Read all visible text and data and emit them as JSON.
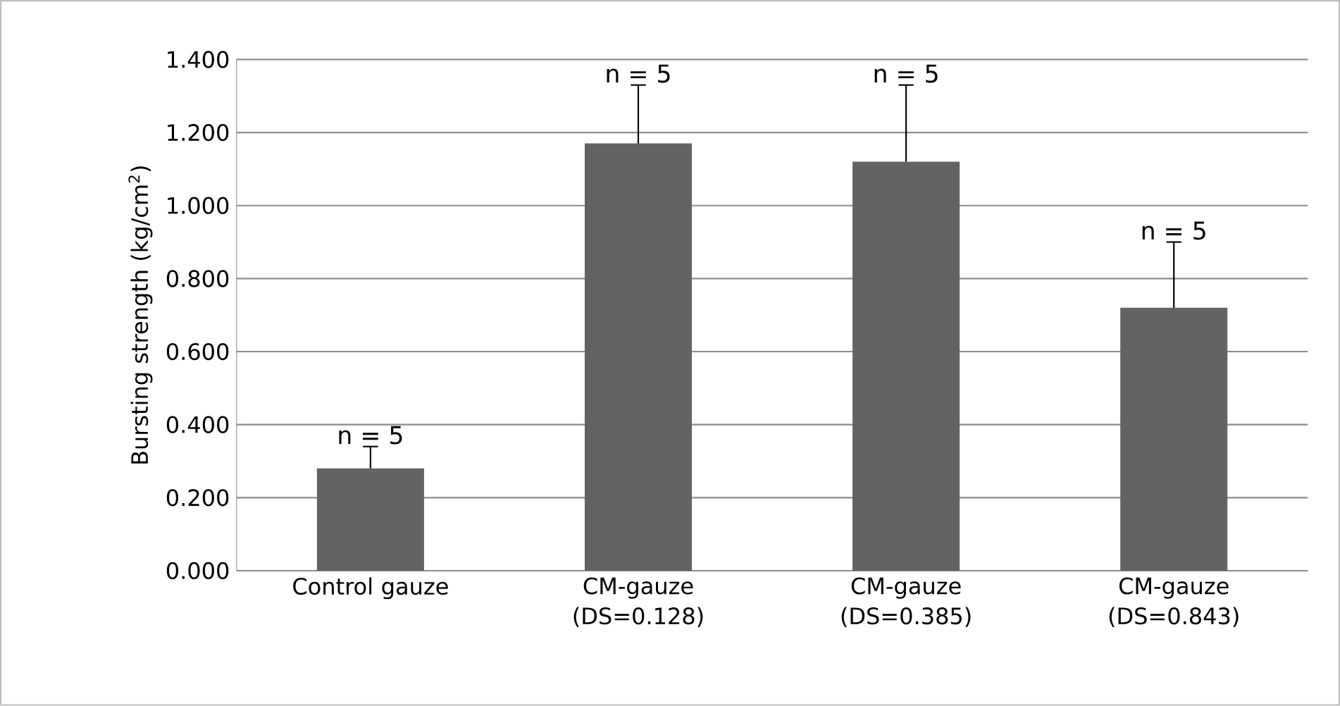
{
  "chart_data": {
    "type": "bar",
    "ylabel": "Bursting strength (kg/cm$^{2}$)",
    "categories": [
      "Control gauze",
      "CM-gauze (DS=0.128)",
      "CM-gauze (DS=0.385)",
      "CM-gauze (DS=0.843)"
    ],
    "values": [
      0.28,
      1.17,
      1.12,
      0.72
    ],
    "errors": [
      0.06,
      0.16,
      0.21,
      0.18
    ],
    "color": "#636363",
    "ylim": [
      0,
      1.4
    ],
    "yticks": [
      {
        "value": 0,
        "label": "0.000"
      },
      {
        "value": 0.2,
        "label": "0.200"
      },
      {
        "value": 0.4,
        "label": "0.400"
      },
      {
        "value": 0.6,
        "label": "0.600"
      },
      {
        "value": 0.8,
        "label": "0.800"
      },
      {
        "value": 1.0,
        "label": "1.000"
      },
      {
        "value": 1.2,
        "label": "1.200"
      },
      {
        "value": 1.4,
        "label": "1.400"
      }
    ],
    "grid": "y",
    "annotations": [
      {
        "text": "n = 5",
        "x": "Control gauze",
        "y": 0.34
      },
      {
        "text": "n = 5",
        "x": "CM-gauze (DS=0.128)",
        "y": 1.33
      },
      {
        "text": "n = 5",
        "x": "CM-gauze (DS=0.385)",
        "y": 1.33
      },
      {
        "text": "n = 5",
        "x": "CM-gauze (DS=0.843)",
        "y": 0.9
      }
    ]
  }
}
